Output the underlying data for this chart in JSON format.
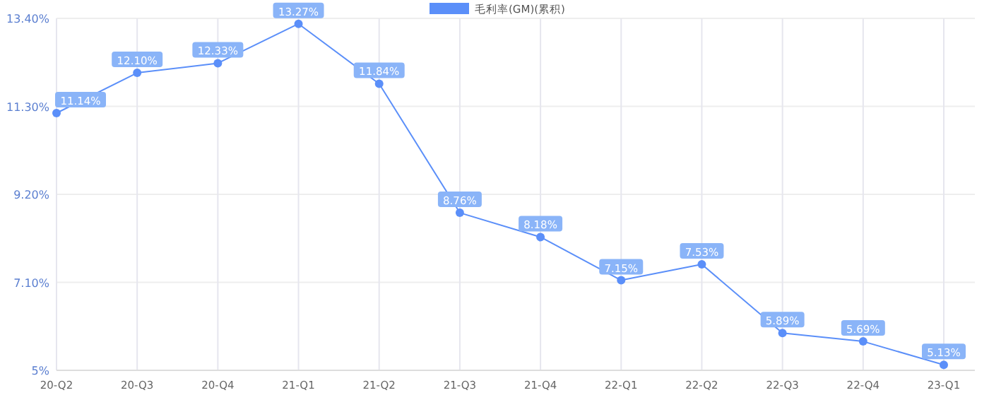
{
  "chart_data": {
    "type": "line",
    "categories": [
      "20-Q2",
      "20-Q3",
      "20-Q4",
      "21-Q1",
      "21-Q2",
      "21-Q3",
      "21-Q4",
      "22-Q1",
      "22-Q2",
      "22-Q3",
      "22-Q4",
      "23-Q1"
    ],
    "series": [
      {
        "name": "毛利率(GM)(累积)",
        "color": "#5b8ff9",
        "values": [
          11.14,
          12.1,
          12.33,
          13.27,
          11.84,
          8.76,
          8.18,
          7.15,
          7.53,
          5.89,
          5.69,
          5.13
        ],
        "value_labels": [
          "11.14%",
          "12.10%",
          "12.33%",
          "13.27%",
          "11.84%",
          "8.76%",
          "8.18%",
          "7.15%",
          "7.53%",
          "5.89%",
          "5.69%",
          "5.13%"
        ]
      }
    ],
    "ylim": [
      5,
      13.4
    ],
    "yticks": [
      {
        "value": 5,
        "label": "5%"
      },
      {
        "value": 7.1,
        "label": "7.10%"
      },
      {
        "value": 9.2,
        "label": "9.20%"
      },
      {
        "value": 11.3,
        "label": "11.30%"
      },
      {
        "value": 13.4,
        "label": "13.40%"
      }
    ],
    "grid": true,
    "legend": "top",
    "marker": "circle",
    "line_style": "solid"
  }
}
